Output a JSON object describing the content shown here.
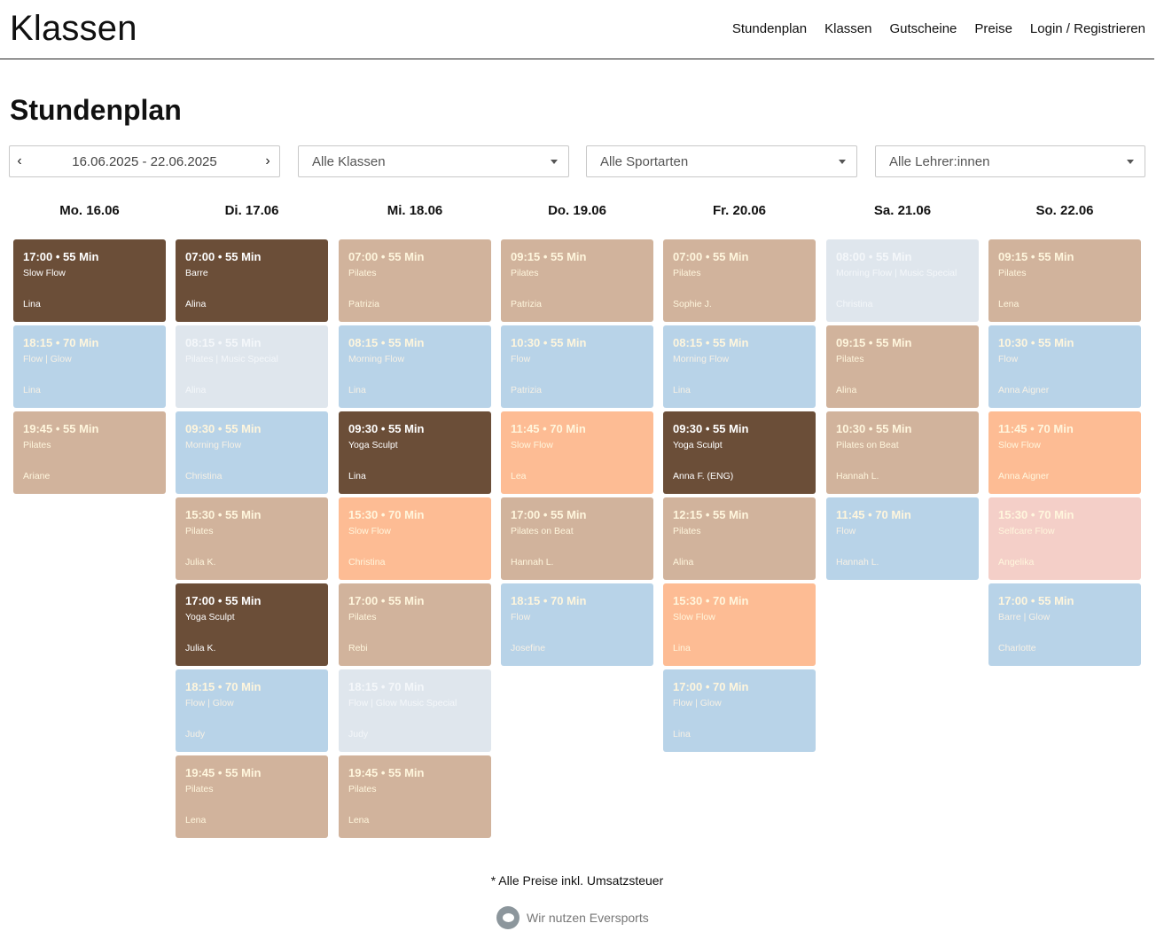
{
  "header": {
    "logo": "Klassen",
    "nav": [
      "Stundenplan",
      "Klassen",
      "Gutscheine",
      "Preise",
      "Login / Registrieren"
    ]
  },
  "page_title": "Stundenplan",
  "filters": {
    "date_range": "16.06.2025 - 22.06.2025",
    "classes": "Alle Klassen",
    "sports": "Alle Sportarten",
    "teachers": "Alle Lehrer:innen"
  },
  "colors": {
    "tan": "#d1b39c",
    "dark_brown": "#6b4e38",
    "light_blue": "#b8d3e8",
    "peach": "#fdbc94",
    "light_pink": "#f4cfc8",
    "faded_gray": "#dfe6ed"
  },
  "schedule": [
    {
      "day": "Mo. 16.06",
      "classes": [
        {
          "time": "17:00 • 55 Min",
          "name": "Slow Flow",
          "teacher": "Lina",
          "color": "dark_brown"
        },
        {
          "time": "18:15 • 70 Min",
          "name": "Flow | Glow",
          "teacher": "Lina",
          "color": "light_blue"
        },
        {
          "time": "19:45 • 55 Min",
          "name": "Pilates",
          "teacher": "Ariane",
          "color": "tan"
        }
      ]
    },
    {
      "day": "Di. 17.06",
      "classes": [
        {
          "time": "07:00 • 55 Min",
          "name": "Barre",
          "teacher": "Alina",
          "color": "dark_brown"
        },
        {
          "time": "08:15 • 55 Min",
          "name": "Pilates | Music Special",
          "teacher": "Alina",
          "color": "faded_gray"
        },
        {
          "time": "09:30 • 55 Min",
          "name": "Morning Flow",
          "teacher": "Christina",
          "color": "light_blue"
        },
        {
          "time": "15:30 • 55 Min",
          "name": "Pilates",
          "teacher": "Julia K.",
          "color": "tan"
        },
        {
          "time": "17:00 • 55 Min",
          "name": "Yoga Sculpt",
          "teacher": "Julia K.",
          "color": "dark_brown"
        },
        {
          "time": "18:15 • 70 Min",
          "name": "Flow | Glow",
          "teacher": "Judy",
          "color": "light_blue"
        },
        {
          "time": "19:45 • 55 Min",
          "name": "Pilates",
          "teacher": "Lena",
          "color": "tan"
        }
      ]
    },
    {
      "day": "Mi. 18.06",
      "classes": [
        {
          "time": "07:00 • 55 Min",
          "name": "Pilates",
          "teacher": "Patrizia",
          "color": "tan"
        },
        {
          "time": "08:15 • 55 Min",
          "name": "Morning Flow",
          "teacher": "Lina",
          "color": "light_blue"
        },
        {
          "time": "09:30 • 55 Min",
          "name": "Yoga Sculpt",
          "teacher": "Lina",
          "color": "dark_brown"
        },
        {
          "time": "15:30 • 70 Min",
          "name": "Slow Flow",
          "teacher": "Christina",
          "color": "peach"
        },
        {
          "time": "17:00 • 55 Min",
          "name": "Pilates",
          "teacher": "Rebi",
          "color": "tan"
        },
        {
          "time": "18:15 • 70 Min",
          "name": "Flow | Glow Music Special",
          "teacher": "Judy",
          "color": "faded_gray"
        },
        {
          "time": "19:45 • 55 Min",
          "name": "Pilates",
          "teacher": "Lena",
          "color": "tan"
        }
      ]
    },
    {
      "day": "Do. 19.06",
      "classes": [
        {
          "time": "09:15 • 55 Min",
          "name": "Pilates",
          "teacher": "Patrizia",
          "color": "tan"
        },
        {
          "time": "10:30 • 55 Min",
          "name": "Flow",
          "teacher": "Patrizia",
          "color": "light_blue"
        },
        {
          "time": "11:45 • 70 Min",
          "name": "Slow Flow",
          "teacher": "Lea",
          "color": "peach"
        },
        {
          "time": "17:00 • 55 Min",
          "name": "Pilates on Beat",
          "teacher": "Hannah L.",
          "color": "tan"
        },
        {
          "time": "18:15 • 70 Min",
          "name": "Flow",
          "teacher": "Josefine",
          "color": "light_blue"
        }
      ]
    },
    {
      "day": "Fr. 20.06",
      "classes": [
        {
          "time": "07:00 • 55 Min",
          "name": "Pilates",
          "teacher": "Sophie J.",
          "color": "tan"
        },
        {
          "time": "08:15 • 55 Min",
          "name": "Morning Flow",
          "teacher": "Lina",
          "color": "light_blue"
        },
        {
          "time": "09:30 • 55 Min",
          "name": "Yoga Sculpt",
          "teacher": "Anna F. (ENG)",
          "color": "dark_brown"
        },
        {
          "time": "12:15 • 55 Min",
          "name": "Pilates",
          "teacher": "Alina",
          "color": "tan"
        },
        {
          "time": "15:30 • 70 Min",
          "name": "Slow Flow",
          "teacher": "Lina",
          "color": "peach"
        },
        {
          "time": "17:00 • 70 Min",
          "name": "Flow | Glow",
          "teacher": "Lina",
          "color": "light_blue"
        }
      ]
    },
    {
      "day": "Sa. 21.06",
      "classes": [
        {
          "time": "08:00 • 55 Min",
          "name": "Morning Flow | Music Special",
          "teacher": "Christina",
          "color": "faded_gray"
        },
        {
          "time": "09:15 • 55 Min",
          "name": "Pilates",
          "teacher": "Alina",
          "color": "tan"
        },
        {
          "time": "10:30 • 55 Min",
          "name": "Pilates on Beat",
          "teacher": "Hannah L.",
          "color": "tan"
        },
        {
          "time": "11:45 • 70 Min",
          "name": "Flow",
          "teacher": "Hannah L.",
          "color": "light_blue"
        }
      ]
    },
    {
      "day": "So. 22.06",
      "classes": [
        {
          "time": "09:15 • 55 Min",
          "name": "Pilates",
          "teacher": "Lena",
          "color": "tan"
        },
        {
          "time": "10:30 • 55 Min",
          "name": "Flow",
          "teacher": "Anna Aigner",
          "color": "light_blue"
        },
        {
          "time": "11:45 • 70 Min",
          "name": "Slow Flow",
          "teacher": "Anna Aigner",
          "color": "peach"
        },
        {
          "time": "15:30 • 70 Min",
          "name": "Selfcare Flow",
          "teacher": "Angelika",
          "color": "light_pink"
        },
        {
          "time": "17:00 • 55 Min",
          "name": "Barre | Glow",
          "teacher": "Charlotte",
          "color": "light_blue"
        }
      ]
    }
  ],
  "footer": {
    "note": "* Alle Preise inkl. Umsatzsteuer",
    "powered_by": "Wir nutzen Eversports"
  }
}
